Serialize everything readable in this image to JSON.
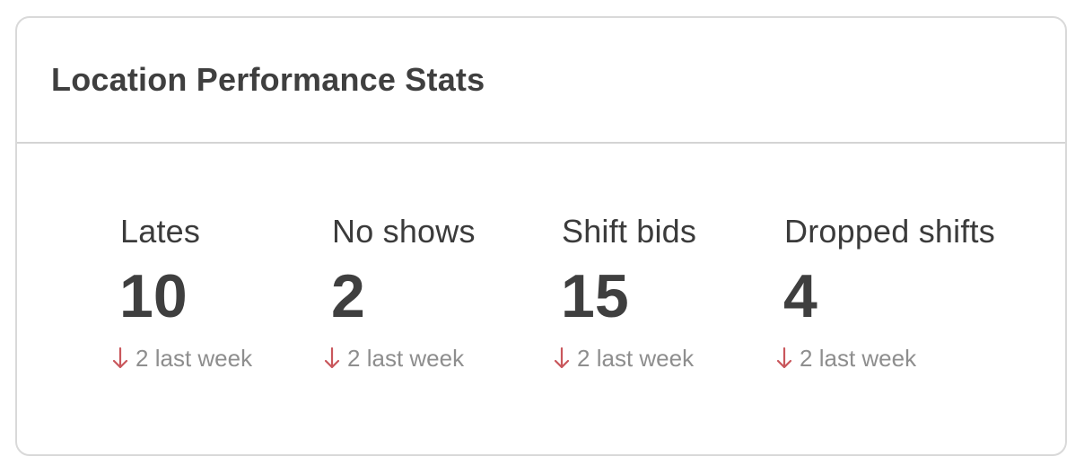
{
  "card": {
    "title": "Location Performance Stats"
  },
  "stats": [
    {
      "label": "Lates",
      "value": "10",
      "change_amount": "2",
      "change_text": "last week",
      "direction": "down"
    },
    {
      "label": "No shows",
      "value": "2",
      "change_amount": "2",
      "change_text": "last week",
      "direction": "down"
    },
    {
      "label": "Shift bids",
      "value": "15",
      "change_amount": "2",
      "change_text": "last week",
      "direction": "down"
    },
    {
      "label": "Dropped shifts",
      "value": "4",
      "change_amount": "2",
      "change_text": "last week",
      "direction": "down"
    }
  ],
  "colors": {
    "arrow_down": "#c9575c",
    "title_text": "#3f3f3f",
    "muted_text": "#8e8e8e",
    "border": "#d9d9d9"
  },
  "icons": {
    "change_icon": "arrow-down-icon"
  }
}
